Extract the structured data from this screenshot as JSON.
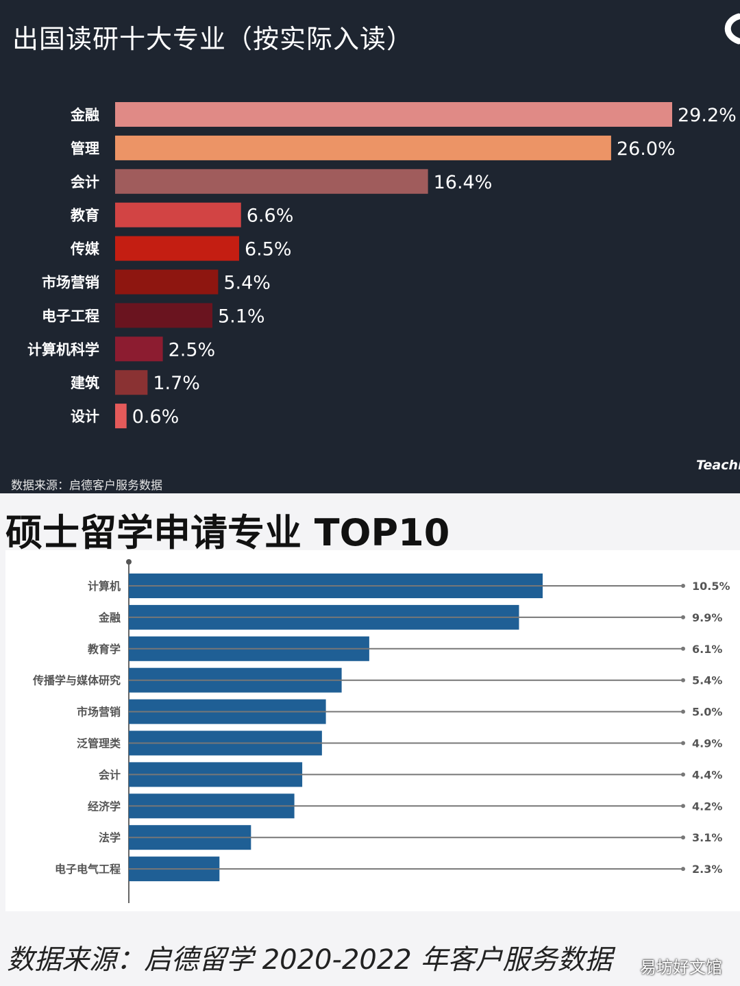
{
  "top": {
    "title": "出国读研十大专业（按实际入读）",
    "source": "数据来源：启德客户服务数据",
    "watermark": "Teachi",
    "colors": {
      "background": "#1e2530",
      "text": "#ffffff"
    }
  },
  "bottom": {
    "title": "硕士留学申请专业 TOP10",
    "source": "数据来源：启德留学 2020-2022 年客户服务数据",
    "colors": {
      "bar": "#1f5f95",
      "line": "#777777",
      "label": "#555555"
    }
  },
  "corner_watermark": "易坊好文馆",
  "chart_data": [
    {
      "type": "bar",
      "orientation": "horizontal",
      "title": "出国读研十大专业（按实际入读）",
      "categories": [
        "金融",
        "管理",
        "会计",
        "教育",
        "传媒",
        "市场营销",
        "电子工程",
        "计算机科学",
        "建筑",
        "设计"
      ],
      "values": [
        29.2,
        26.0,
        16.4,
        6.6,
        6.5,
        5.4,
        5.1,
        2.5,
        1.7,
        0.6
      ],
      "value_labels": [
        "29.2%",
        "26.0%",
        "16.4%",
        "6.6%",
        "6.5%",
        "5.4%",
        "5.1%",
        "2.5%",
        "1.7%",
        "0.6%"
      ],
      "bar_colors": [
        "#e08a86",
        "#ec9466",
        "#a05c5c",
        "#d24444",
        "#c41e12",
        "#8e1610",
        "#6a141f",
        "#8c1c30",
        "#8a3233",
        "#e45a5a"
      ],
      "xlim": [
        0,
        29.2
      ],
      "unit": "%"
    },
    {
      "type": "bar",
      "orientation": "horizontal",
      "title": "硕士留学申请专业 TOP10",
      "categories": [
        "计算机",
        "金融",
        "教育学",
        "传播学与媒体研究",
        "市场营销",
        "泛管理类",
        "会计",
        "经济学",
        "法学",
        "电子电气工程"
      ],
      "values": [
        10.5,
        9.9,
        6.1,
        5.4,
        5.0,
        4.9,
        4.4,
        4.2,
        3.1,
        2.3
      ],
      "value_labels": [
        "10.5%",
        "9.9%",
        "6.1%",
        "5.4%",
        "5.0%",
        "4.9%",
        "4.4%",
        "4.2%",
        "3.1%",
        "2.3%"
      ],
      "xlim": [
        0,
        10.5
      ],
      "unit": "%"
    }
  ]
}
